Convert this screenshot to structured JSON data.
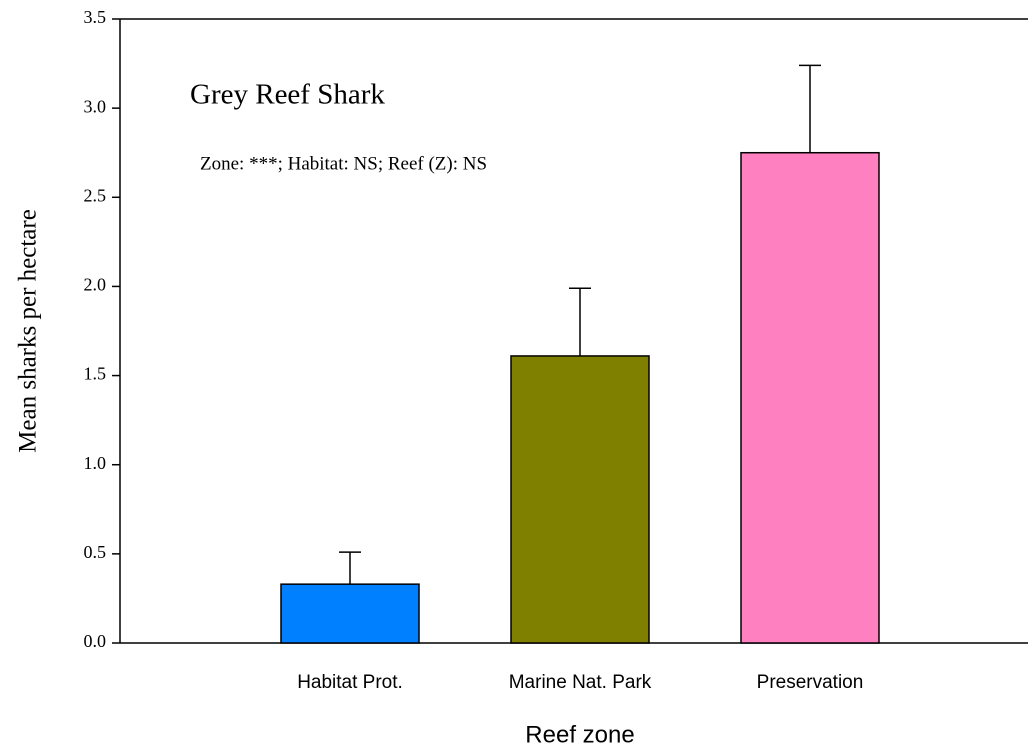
{
  "chart_data": {
    "type": "bar",
    "title": "Grey Reef Shark",
    "annotation": "Zone: ***; Habitat: NS; Reef (Z): NS",
    "xlabel": "Reef zone",
    "ylabel": "Mean sharks per hectare",
    "categories": [
      "Habitat Prot.",
      "Marine Nat. Park",
      "Preservation"
    ],
    "values": [
      0.33,
      1.61,
      2.75
    ],
    "errors": [
      0.18,
      0.38,
      0.49
    ],
    "colors": [
      "#0080ff",
      "#808000",
      "#ff80c0"
    ],
    "ylim": [
      0,
      3.5
    ],
    "yticks": [
      {
        "value": 0,
        "label": "0.0"
      },
      0.5,
      {
        "value": 1,
        "label": "1.0"
      },
      1.5,
      {
        "value": 2,
        "label": "2.0"
      },
      2.5,
      {
        "value": 3,
        "label": "3.0"
      },
      3.5
    ],
    "grid": false
  }
}
